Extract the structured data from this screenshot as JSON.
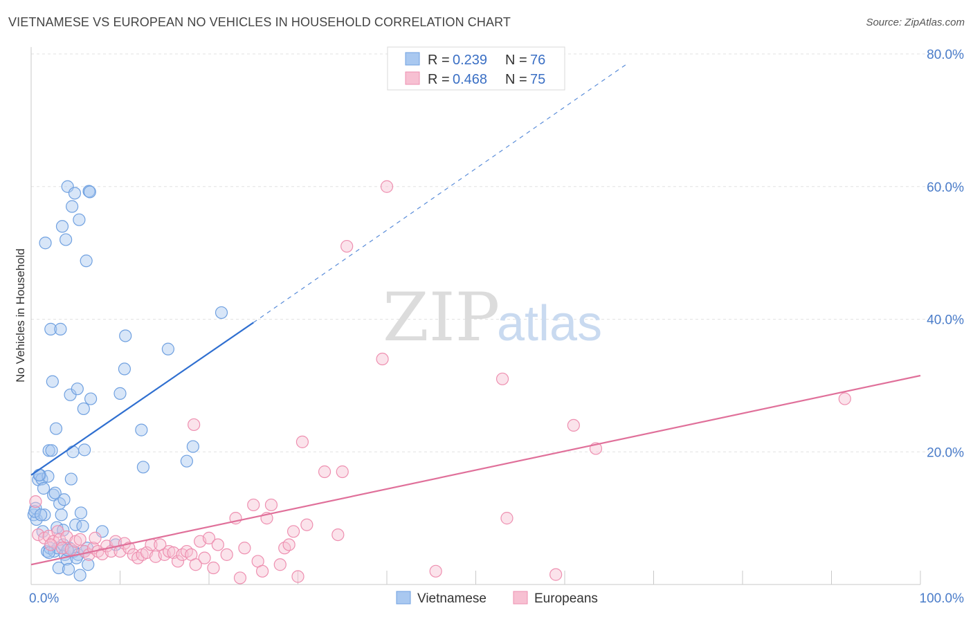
{
  "chart_data": {
    "type": "scatter",
    "title": "VIETNAMESE VS EUROPEAN NO VEHICLES IN HOUSEHOLD CORRELATION CHART",
    "source": "Source: ZipAtlas.com",
    "ylabel": "No Vehicles in Household",
    "xlim": [
      0,
      100
    ],
    "ylim": [
      0,
      80
    ],
    "x_tick_labels": [
      "0.0%",
      "100.0%"
    ],
    "y_tick_labels": [
      "20.0%",
      "40.0%",
      "60.0%",
      "80.0%"
    ],
    "y_ticks": [
      20,
      40,
      60,
      80
    ],
    "watermark": {
      "zip": "ZIP",
      "atlas": "atlas"
    },
    "legend": [
      {
        "r_label": "R = ",
        "r": "0.239",
        "n_label": "N = ",
        "n": "76"
      },
      {
        "r_label": "R = ",
        "r": "0.468",
        "n_label": "N = ",
        "n": "75"
      }
    ],
    "series": [
      {
        "name": "Vietnamese",
        "color": "#6fa0e0",
        "fill": "#a9c8f0",
        "line_color": "#2f6fd0",
        "trend": {
          "x0": 0,
          "y0": 16.5,
          "x1": 25,
          "y1": 39.5,
          "dash_x1": 67,
          "dash_y1": 78.5
        },
        "points": [
          [
            0.3,
            10.5
          ],
          [
            0.5,
            11.5
          ],
          [
            0.6,
            9.8
          ],
          [
            0.8,
            15.8
          ],
          [
            1.0,
            16.5
          ],
          [
            1.2,
            15.9
          ],
          [
            1.4,
            14.5
          ],
          [
            1.3,
            8.0
          ],
          [
            1.6,
            51.5
          ],
          [
            1.5,
            10.5
          ],
          [
            1.8,
            5.0
          ],
          [
            1.9,
            16.3
          ],
          [
            2.0,
            20.2
          ],
          [
            2.1,
            5.5
          ],
          [
            2.2,
            38.5
          ],
          [
            2.3,
            20.2
          ],
          [
            2.4,
            30.6
          ],
          [
            2.5,
            13.5
          ],
          [
            2.6,
            5.0
          ],
          [
            2.7,
            13.8
          ],
          [
            2.8,
            23.5
          ],
          [
            2.9,
            8.6
          ],
          [
            3.0,
            5.5
          ],
          [
            3.1,
            2.5
          ],
          [
            3.2,
            12.2
          ],
          [
            3.3,
            38.5
          ],
          [
            3.4,
            10.5
          ],
          [
            3.5,
            54.0
          ],
          [
            3.6,
            8.2
          ],
          [
            3.7,
            12.8
          ],
          [
            3.8,
            4.5
          ],
          [
            3.9,
            52.0
          ],
          [
            4.0,
            3.8
          ],
          [
            4.1,
            60.0
          ],
          [
            4.2,
            2.3
          ],
          [
            4.3,
            5.5
          ],
          [
            4.4,
            28.6
          ],
          [
            4.5,
            15.9
          ],
          [
            4.6,
            57.0
          ],
          [
            4.7,
            20.0
          ],
          [
            4.8,
            5.0
          ],
          [
            4.9,
            59.0
          ],
          [
            5.0,
            9.0
          ],
          [
            5.2,
            29.5
          ],
          [
            5.3,
            4.5
          ],
          [
            5.4,
            55.0
          ],
          [
            5.5,
            1.4
          ],
          [
            5.6,
            10.8
          ],
          [
            5.8,
            8.8
          ],
          [
            5.9,
            26.5
          ],
          [
            6.0,
            20.3
          ],
          [
            6.2,
            48.8
          ],
          [
            6.3,
            5.5
          ],
          [
            6.4,
            3.0
          ],
          [
            6.5,
            59.3
          ],
          [
            6.6,
            59.2
          ],
          [
            6.7,
            28.0
          ],
          [
            8.0,
            8.0
          ],
          [
            9.5,
            6.0
          ],
          [
            10.0,
            28.8
          ],
          [
            10.5,
            32.5
          ],
          [
            10.6,
            37.5
          ],
          [
            12.4,
            23.3
          ],
          [
            12.6,
            17.7
          ],
          [
            15.4,
            35.5
          ],
          [
            17.5,
            18.6
          ],
          [
            18.2,
            20.8
          ],
          [
            21.4,
            41.0
          ],
          [
            0.4,
            11.0
          ],
          [
            1.1,
            10.5
          ],
          [
            0.9,
            16.5
          ],
          [
            2.0,
            4.8
          ],
          [
            3.6,
            6.0
          ],
          [
            4.1,
            5.2
          ],
          [
            5.1,
            4.0
          ],
          [
            6.0,
            5.0
          ]
        ]
      },
      {
        "name": "Europeans",
        "color": "#ee8fb0",
        "fill": "#f7c0d2",
        "line_color": "#e0709a",
        "trend": {
          "x0": 0,
          "y0": 3.0,
          "x1": 100,
          "y1": 31.5
        },
        "points": [
          [
            0.5,
            12.5
          ],
          [
            0.8,
            7.5
          ],
          [
            1.5,
            7.0
          ],
          [
            2.0,
            7.3
          ],
          [
            2.5,
            6.5
          ],
          [
            3.0,
            8.0
          ],
          [
            3.2,
            6.8
          ],
          [
            3.5,
            5.5
          ],
          [
            4.0,
            7.2
          ],
          [
            4.5,
            5.3
          ],
          [
            5.0,
            6.5
          ],
          [
            5.5,
            6.8
          ],
          [
            6.0,
            5.0
          ],
          [
            6.5,
            4.5
          ],
          [
            7.0,
            5.5
          ],
          [
            7.5,
            5.0
          ],
          [
            8.0,
            4.6
          ],
          [
            8.5,
            5.8
          ],
          [
            9.0,
            5.0
          ],
          [
            9.5,
            6.5
          ],
          [
            10.0,
            5.0
          ],
          [
            10.5,
            6.2
          ],
          [
            11.0,
            5.5
          ],
          [
            11.5,
            4.5
          ],
          [
            12.0,
            4.0
          ],
          [
            12.5,
            4.5
          ],
          [
            13.0,
            4.8
          ],
          [
            13.5,
            6.0
          ],
          [
            14.0,
            4.2
          ],
          [
            14.5,
            6.0
          ],
          [
            15.0,
            4.5
          ],
          [
            15.5,
            5.0
          ],
          [
            16.0,
            4.8
          ],
          [
            16.5,
            3.5
          ],
          [
            17.0,
            4.5
          ],
          [
            17.5,
            5.0
          ],
          [
            18.0,
            4.5
          ],
          [
            18.5,
            3.0
          ],
          [
            19.0,
            6.5
          ],
          [
            19.5,
            4.0
          ],
          [
            20.0,
            7.0
          ],
          [
            20.5,
            2.5
          ],
          [
            21.0,
            6.0
          ],
          [
            22.0,
            4.5
          ],
          [
            23.0,
            10.0
          ],
          [
            23.5,
            1.0
          ],
          [
            24.0,
            5.5
          ],
          [
            25.0,
            12.0
          ],
          [
            25.5,
            3.5
          ],
          [
            26.0,
            2.0
          ],
          [
            26.5,
            10.0
          ],
          [
            27.0,
            12.0
          ],
          [
            28.0,
            3.0
          ],
          [
            28.5,
            5.5
          ],
          [
            29.0,
            6.0
          ],
          [
            29.5,
            8.0
          ],
          [
            30.0,
            1.2
          ],
          [
            30.5,
            21.5
          ],
          [
            31.0,
            9.0
          ],
          [
            33.0,
            17.0
          ],
          [
            34.5,
            7.5
          ],
          [
            35.0,
            17.0
          ],
          [
            35.5,
            51.0
          ],
          [
            39.5,
            34.0
          ],
          [
            40.0,
            60.0
          ],
          [
            45.5,
            2.0
          ],
          [
            53.0,
            31.0
          ],
          [
            53.5,
            10.0
          ],
          [
            59.0,
            1.5
          ],
          [
            61.0,
            24.0
          ],
          [
            63.5,
            20.5
          ],
          [
            91.5,
            28.0
          ],
          [
            18.3,
            24.1
          ],
          [
            2.2,
            6.0
          ],
          [
            7.2,
            7.0
          ]
        ]
      }
    ]
  }
}
